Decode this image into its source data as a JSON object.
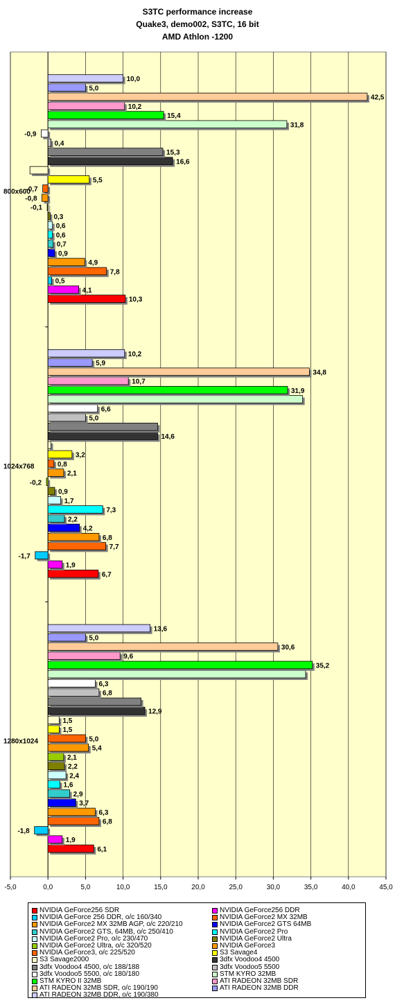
{
  "titles": {
    "line1": "S3TC performance increase",
    "line2": "Quake3, demo002, S3TC, 16 bit",
    "line3": "AMD Athlon -1200"
  },
  "chart_data": {
    "type": "bar",
    "orientation": "horizontal",
    "title": "S3TC performance increase",
    "subtitle": "Quake3, demo002, S3TC, 16 bit / AMD Athlon -1200",
    "xlim": [
      -5,
      45
    ],
    "xticks": [
      "-5,0",
      "0,0",
      "5,0",
      "10,0",
      "15,0",
      "20,0",
      "25,0",
      "30,0",
      "35,0",
      "40,0",
      "45,0"
    ],
    "grid": true,
    "legend_position": "bottom",
    "categories": [
      "1280x1024",
      "1024x768",
      "800x600"
    ],
    "series": [
      {
        "name": "NVIDIA GeForce256 SDR",
        "color": "#ff0000",
        "values": [
          6.1,
          6.7,
          10.3
        ],
        "labels": [
          "6,1",
          "6,7",
          "10,3"
        ]
      },
      {
        "name": "NVIDIA GeForce256 DDR",
        "color": "#ff00ff",
        "values": [
          1.9,
          1.9,
          4.1
        ],
        "labels": [
          "1,9",
          "1,9",
          "4,1"
        ]
      },
      {
        "name": "NVIDIA GeForce 256 DDR, o/c 160/340",
        "color": "#00ccff",
        "values": [
          -1.8,
          -1.7,
          0.5
        ],
        "labels": [
          "-1,8",
          "-1,7",
          "0,5"
        ]
      },
      {
        "name": "NVIDIA GeForce2 MX 32MB",
        "color": "#ff6600",
        "values": [
          6.8,
          7.7,
          7.8
        ],
        "labels": [
          "6,8",
          "7,7",
          "7,8"
        ]
      },
      {
        "name": "NVIDIA GeForce2 MX 32MB AGP, o/c 220/210",
        "color": "#ff9900",
        "values": [
          6.3,
          6.8,
          4.9
        ],
        "labels": [
          "6,3",
          "6,8",
          "4,9"
        ]
      },
      {
        "name": "NVIDIA GeForce2 GTS 64MB",
        "color": "#0000ff",
        "values": [
          3.7,
          4.2,
          0.9
        ],
        "labels": [
          "3,7",
          "4,2",
          "0,9"
        ]
      },
      {
        "name": "NVIDIA GeForce2 GTS, 64MB, o/c 250/410",
        "color": "#33cccc",
        "values": [
          2.9,
          2.2,
          0.7
        ],
        "labels": [
          "2,9",
          "2,2",
          "0,7"
        ]
      },
      {
        "name": "NVIDIA GeForce2 Pro",
        "color": "#00ffff",
        "values": [
          1.6,
          7.3,
          0.6
        ],
        "labels": [
          "1,6",
          "7,3",
          "0,6"
        ]
      },
      {
        "name": "NVIDIA GeForce2 Pro, o/c 230/470",
        "color": "#ccffff",
        "values": [
          2.4,
          1.7,
          0.6
        ],
        "labels": [
          "2,4",
          "1,7",
          "0,6"
        ]
      },
      {
        "name": "NVIDIA GeForce2 Ultra",
        "color": "#808000",
        "values": [
          2.2,
          0.9,
          0.3
        ],
        "labels": [
          "2,2",
          "0,9",
          "0,3"
        ]
      },
      {
        "name": "NVIDIA GeForce2 Ultra, o/c 320/520",
        "color": "#99cc00",
        "values": [
          2.1,
          -0.2,
          -0.1
        ],
        "labels": [
          "2,1",
          "-0,2",
          "-0,1"
        ]
      },
      {
        "name": "NVIDIA GeForce3",
        "color": "#ff9900",
        "values": [
          5.4,
          2.1,
          -0.8
        ],
        "labels": [
          "5,4",
          "2,1",
          "-0,8"
        ]
      },
      {
        "name": "NVIDIA GeForce3, o/c 225/520",
        "color": "#ff6600",
        "values": [
          5.0,
          0.8,
          -0.7
        ],
        "labels": [
          "5,0",
          "0,8",
          "-0,7"
        ]
      },
      {
        "name": "S3 Savage4",
        "color": "#ffff00",
        "values": [
          1.5,
          3.2,
          5.5
        ],
        "labels": [
          "1,5",
          "3,2",
          "5,5"
        ]
      },
      {
        "name": "S3 Savage2000",
        "color": "#ffffcc",
        "values": [
          1.5,
          0.4,
          -2.4
        ],
        "labels": [
          "1,5",
          "",
          ""
        ]
      },
      {
        "name": "3dfx Voodoo4 4500",
        "color": "#333333",
        "values": [
          12.9,
          14.6,
          16.6
        ],
        "labels": [
          "12,9",
          "14,6",
          "16,6"
        ]
      },
      {
        "name": "3dfx Voodoo4 4500, o/c 188/188",
        "color": "#808080",
        "values": [
          12.4,
          14.6,
          15.3
        ],
        "labels": [
          "",
          "",
          "15,3"
        ]
      },
      {
        "name": "3dfx Voodoo5 5500",
        "color": "#c0c0c0",
        "values": [
          6.8,
          5.0,
          0.4
        ],
        "labels": [
          "6,8",
          "5,0",
          "0,4"
        ]
      },
      {
        "name": "3dfx Voodoo5 5500, o/c 180/180",
        "color": "#ffffff",
        "values": [
          6.3,
          6.6,
          -0.9
        ],
        "labels": [
          "6,3",
          "6,6",
          "-0,9"
        ]
      },
      {
        "name": "STM KYRO 32MB",
        "color": "#ccffcc",
        "values": [
          34.3,
          33.9,
          31.8
        ],
        "labels": [
          "",
          "",
          "31,8"
        ]
      },
      {
        "name": "STM KYRO II 32MB",
        "color": "#00ff00",
        "values": [
          35.2,
          31.9,
          15.4
        ],
        "labels": [
          "35,2",
          "31,9",
          "15,4"
        ]
      },
      {
        "name": "ATI RADEON 32MB SDR",
        "color": "#ff99cc",
        "values": [
          9.6,
          10.7,
          10.2
        ],
        "labels": [
          "9,6",
          "10,7",
          "10,2"
        ]
      },
      {
        "name": "ATI RADEON 32MB SDR, o/c 190/190",
        "color": "#ffcc99",
        "values": [
          30.6,
          34.8,
          42.5
        ],
        "labels": [
          "30,6",
          "34,8",
          "42,5"
        ]
      },
      {
        "name": "ATI RADEON 32MB DDR",
        "color": "#9999ff",
        "values": [
          5.0,
          5.9,
          5.0
        ],
        "labels": [
          "5,0",
          "5,9",
          "5,0"
        ]
      },
      {
        "name": "ATI RADEON 32MB DDR, o/c 190/380",
        "color": "#ccccff",
        "values": [
          13.6,
          10.2,
          10.0
        ],
        "labels": [
          "13,6",
          "10,2",
          "10,0"
        ]
      }
    ]
  }
}
